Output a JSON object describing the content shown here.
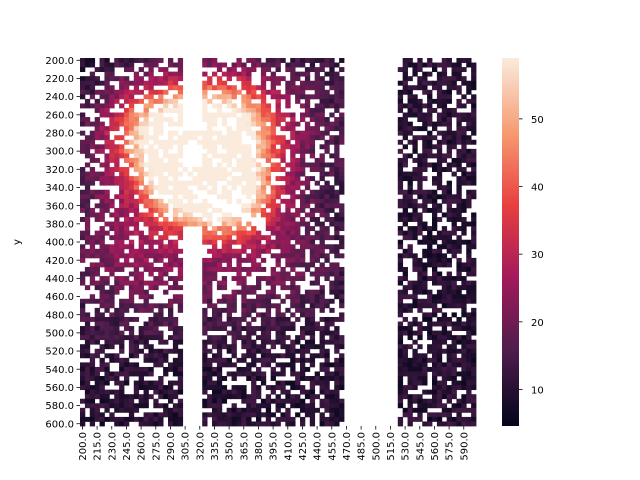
{
  "chart_data": {
    "type": "heatmap",
    "title": "",
    "xlabel": "",
    "ylabel": "y",
    "x_tick_labels": [
      "200.0",
      "215.0",
      "230.0",
      "245.0",
      "260.0",
      "275.0",
      "290.0",
      "305.0",
      "320.0",
      "335.0",
      "350.0",
      "365.0",
      "380.0",
      "395.0",
      "410.0",
      "425.0",
      "440.0",
      "455.0",
      "470.0",
      "485.0",
      "500.0",
      "515.0",
      "530.0",
      "545.0",
      "560.0",
      "575.0",
      "590.0"
    ],
    "y_tick_labels": [
      "200.0",
      "220.0",
      "240.0",
      "260.0",
      "280.0",
      "300.0",
      "320.0",
      "340.0",
      "360.0",
      "380.0",
      "400.0",
      "420.0",
      "440.0",
      "460.0",
      "480.0",
      "500.0",
      "520.0",
      "540.0",
      "560.0",
      "580.0",
      "600.0"
    ],
    "x_range": [
      200,
      600
    ],
    "y_range": [
      200,
      600
    ],
    "colorbar": {
      "min": 4.6,
      "max": 59,
      "ticks": [
        10,
        20,
        30,
        40,
        50
      ],
      "colormap": "rocket",
      "stops": [
        "#03051a",
        "#4c1d4b",
        "#a11a5b",
        "#e83f3f",
        "#f69c73",
        "#faebdd"
      ]
    },
    "missing_color": "#ffffff",
    "notes": "Cell values on a 5-unit grid; bright peaks near (280,280), (310,330), (345,270), (355,345); blank bands (missing) near x=300-320 and x=470-525."
  }
}
